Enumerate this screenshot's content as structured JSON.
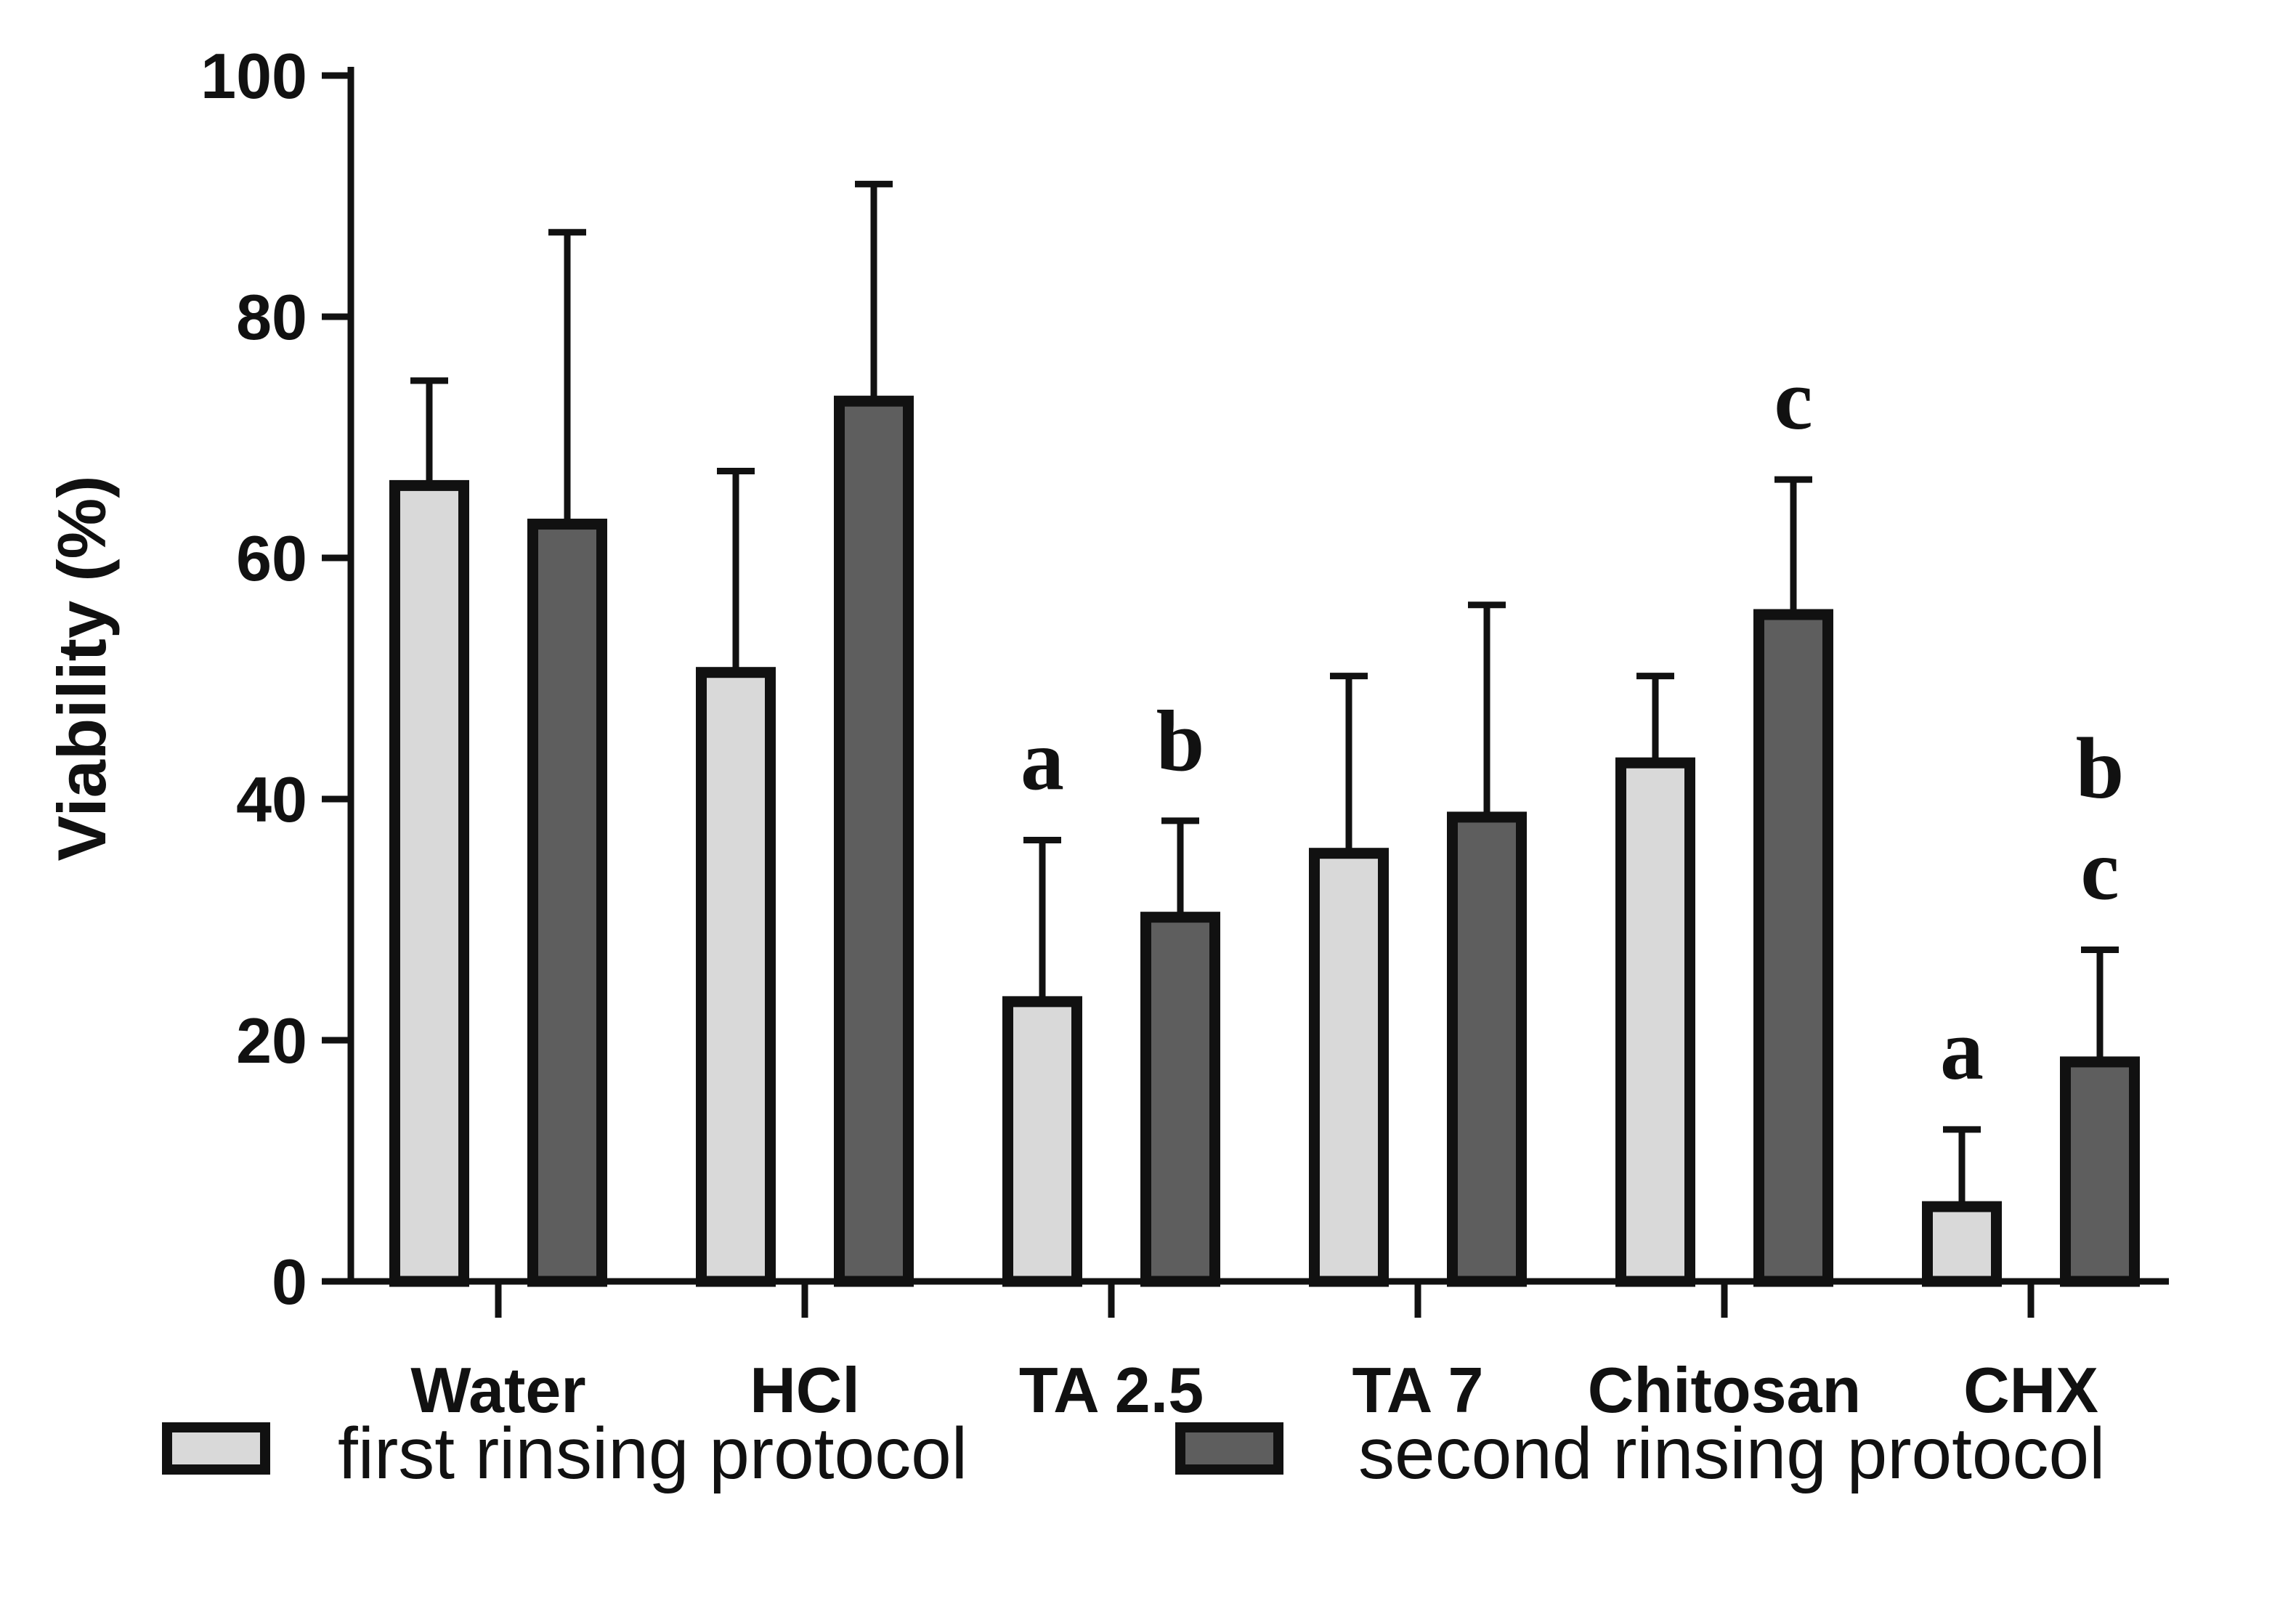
{
  "chart_data": {
    "type": "bar",
    "title": "",
    "xlabel": "",
    "ylabel": "Viability (%)",
    "ylim": [
      0,
      100
    ],
    "yticks": [
      0,
      20,
      40,
      60,
      80,
      100
    ],
    "grid": false,
    "legend_position": "bottom",
    "categories": [
      "Water",
      "HCl",
      "TA 2.5",
      "TA 7",
      "Chitosan",
      "CHX"
    ],
    "series": [
      {
        "name": "first rinsing protocol",
        "color": "#d9d9d9",
        "values": [
          66,
          50.5,
          23.2,
          35.5,
          43,
          6.2
        ],
        "errors": [
          8.7,
          16.7,
          13.4,
          14.7,
          7.2,
          6.4
        ],
        "significance": [
          "",
          "",
          "a",
          "",
          "",
          "a"
        ]
      },
      {
        "name": "second rinsing protocol",
        "color": "#5e5e5e",
        "values": [
          62.8,
          73,
          30.2,
          38.5,
          55.3,
          18.2
        ],
        "errors": [
          24.2,
          18,
          8,
          17.6,
          11.2,
          9.3
        ],
        "significance": [
          "",
          "",
          "b",
          "",
          "c",
          "b\nc"
        ]
      }
    ]
  }
}
